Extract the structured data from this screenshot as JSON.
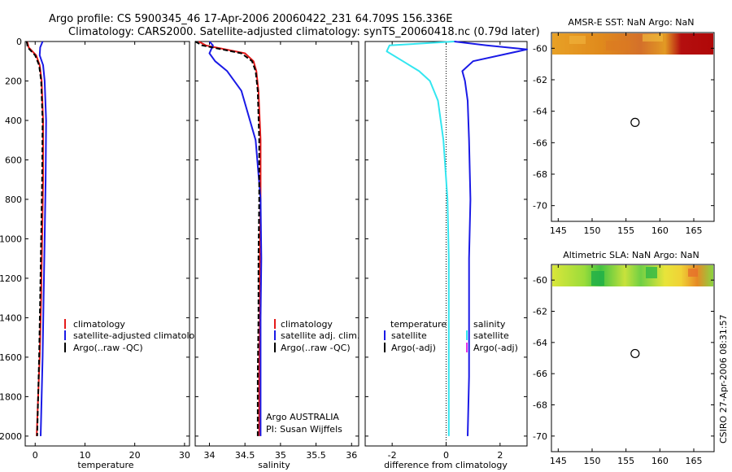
{
  "title": {
    "line1": "Argo profile: CS 5900345_46 17-Apr-2006 20060422_231 64.709S 156.336E",
    "line2": "Climatology: CARS2000. Satellite-adjusted climatology: synTS_20060418.nc (0.79d later)"
  },
  "footer": "CSIRO 27-Apr-2006 08:31:57",
  "colors": {
    "climatology": "#e41a1a",
    "satellite": "#1a1ae6",
    "argo": "#000000",
    "salinity_satellite": "#33e6f0",
    "salinity_argo": "#e633e6"
  },
  "chart_data": [
    {
      "type": "line",
      "name": "temperature-profile",
      "xlabel": "temperature",
      "ylabel": "",
      "xlim": [
        -2,
        31
      ],
      "ylim": [
        2050,
        0
      ],
      "xticks": [
        0,
        10,
        20,
        30
      ],
      "yticks": [
        0,
        200,
        400,
        600,
        800,
        1000,
        1200,
        1400,
        1600,
        1800,
        2000
      ],
      "series": [
        {
          "name": "climatology",
          "color": "#e41a1a",
          "style": "solid",
          "x": [
            -1.6,
            -1.3,
            0.2,
            0.9,
            1.3,
            1.6,
            1.6,
            1.4,
            1.2,
            0.9,
            0.6,
            0.3
          ],
          "y": [
            0,
            30,
            70,
            120,
            200,
            400,
            700,
            1000,
            1300,
            1600,
            1800,
            2000
          ]
        },
        {
          "name": "satellite-adjusted climatology",
          "color": "#1a1ae6",
          "style": "solid",
          "x": [
            1.5,
            1.0,
            0.9,
            1.6,
            1.9,
            2.2,
            2.1,
            1.9,
            1.7,
            1.5,
            1.3,
            1.1
          ],
          "y": [
            0,
            30,
            70,
            120,
            200,
            400,
            700,
            1000,
            1300,
            1600,
            1800,
            2000
          ]
        },
        {
          "name": "Argo(..raw -QC)",
          "color": "#000000",
          "style": "dashed",
          "x": [
            -1.7,
            -1.5,
            0.0,
            0.8,
            1.2,
            1.5,
            1.4,
            1.2,
            1.0,
            0.8,
            0.6,
            0.4
          ],
          "y": [
            0,
            30,
            70,
            120,
            200,
            400,
            700,
            1000,
            1300,
            1600,
            1800,
            2000
          ]
        }
      ],
      "legend": [
        "climatology",
        "satellite-adjusted climatology",
        "Argo(..raw -QC)"
      ]
    },
    {
      "type": "line",
      "name": "salinity-profile",
      "xlabel": "salinity",
      "xlim": [
        33.8,
        36.1
      ],
      "ylim": [
        2050,
        0
      ],
      "xticks": [
        34,
        34.5,
        35,
        35.5,
        36
      ],
      "series": [
        {
          "name": "climatology",
          "color": "#e41a1a",
          "style": "solid",
          "x": [
            33.85,
            33.95,
            34.5,
            34.62,
            34.66,
            34.69,
            34.72,
            34.72,
            34.71,
            34.71,
            34.7,
            34.7
          ],
          "y": [
            0,
            20,
            60,
            100,
            150,
            250,
            500,
            800,
            1100,
            1400,
            1700,
            2000
          ]
        },
        {
          "name": "satellite adj. clim.",
          "color": "#1a1ae6",
          "style": "solid",
          "x": [
            34.0,
            34.05,
            34.0,
            34.08,
            34.25,
            34.45,
            34.65,
            34.72,
            34.73,
            34.72,
            34.72,
            34.72
          ],
          "y": [
            0,
            20,
            60,
            100,
            150,
            250,
            500,
            800,
            1100,
            1400,
            1700,
            2000
          ]
        },
        {
          "name": "Argo(..raw -QC)",
          "color": "#000000",
          "style": "dashed",
          "x": [
            33.8,
            33.9,
            34.45,
            34.6,
            34.65,
            34.68,
            34.7,
            34.7,
            34.69,
            34.69,
            34.68,
            34.68
          ],
          "y": [
            0,
            20,
            60,
            100,
            150,
            250,
            500,
            800,
            1100,
            1400,
            1700,
            2000
          ]
        }
      ],
      "legend": [
        "climatology",
        "satellite adj. clim.",
        "Argo(..raw -QC)"
      ],
      "annotation": [
        "Argo AUSTRALIA",
        "PI: Susan Wijffels"
      ]
    },
    {
      "type": "line",
      "name": "difference-profile",
      "xlabel": "difference from climatology",
      "xlim": [
        -3,
        3
      ],
      "ylim": [
        2050,
        0
      ],
      "xticks": [
        -2,
        0,
        2
      ],
      "zero_line": true,
      "series": [
        {
          "name": "temperature satellite",
          "color": "#1a1ae6",
          "style": "solid",
          "x": [
            0.3,
            1.5,
            3.0,
            1.0,
            0.6,
            0.7,
            0.8,
            0.85,
            0.9,
            0.85,
            0.85,
            0.85,
            0.8
          ],
          "y": [
            0,
            20,
            40,
            100,
            150,
            200,
            300,
            500,
            800,
            1100,
            1400,
            1700,
            2000
          ]
        },
        {
          "name": "salinity satellite",
          "color": "#33e6f0",
          "style": "solid",
          "x": [
            0.3,
            -2.1,
            -2.2,
            -1.6,
            -1.0,
            -0.6,
            -0.3,
            -0.1,
            0.05,
            0.1,
            0.1,
            0.1,
            0.1
          ],
          "y": [
            0,
            20,
            50,
            100,
            150,
            200,
            300,
            500,
            800,
            1100,
            1400,
            1700,
            2000
          ]
        }
      ],
      "legend_temperature": {
        "title": "temperature",
        "items": [
          "satellite",
          "Argo(-adj)"
        ]
      },
      "legend_salinity": {
        "title": "salinity",
        "items": [
          "satellite",
          "Argo(-adj)"
        ]
      }
    },
    {
      "type": "heatmap",
      "name": "amsre-sst-map",
      "title": "AMSR-E SST: NaN Argo: NaN",
      "xlim": [
        144,
        168
      ],
      "ylim": [
        -71,
        -59
      ],
      "xticks": [
        145,
        150,
        155,
        160,
        165
      ],
      "yticks": [
        -60,
        -62,
        -64,
        -66,
        -68,
        -70
      ],
      "argo_position": [
        156.34,
        -64.71
      ]
    },
    {
      "type": "heatmap",
      "name": "altimetric-sla-map",
      "title": "Altimetric SLA: NaN Argo: NaN",
      "xlim": [
        144,
        168
      ],
      "ylim": [
        -71,
        -59
      ],
      "xticks": [
        145,
        150,
        155,
        160,
        165
      ],
      "yticks": [
        -60,
        -62,
        -64,
        -66,
        -68,
        -70
      ],
      "argo_position": [
        156.34,
        -64.71
      ]
    }
  ]
}
